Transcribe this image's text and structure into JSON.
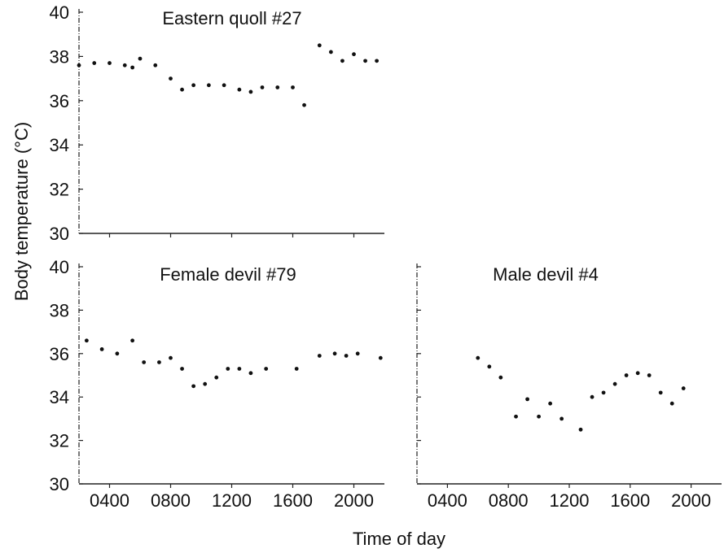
{
  "figure": {
    "ylabel": "Body temperature (°C)",
    "xlabel": "Time of day"
  },
  "chart_data": [
    {
      "type": "scatter",
      "title": "Eastern quoll #27",
      "xlabel": "",
      "ylabel": "Body temperature (°C)",
      "xlim": [
        200,
        2200
      ],
      "ylim": [
        30,
        40
      ],
      "yticks": [
        30,
        32,
        34,
        36,
        38,
        40
      ],
      "xticks": [
        400,
        800,
        1200,
        1600,
        2000
      ],
      "series": [
        {
          "x": [
            200,
            300,
            400,
            500,
            550,
            600,
            700,
            800,
            875,
            950,
            1050,
            1150,
            1250,
            1325,
            1400,
            1500,
            1600,
            1675,
            1775,
            1850,
            1925,
            2000,
            2075,
            2150
          ],
          "y": [
            37.6,
            37.7,
            37.7,
            37.6,
            37.5,
            37.9,
            37.6,
            37.0,
            36.5,
            36.7,
            36.7,
            36.7,
            36.5,
            36.4,
            36.6,
            36.6,
            36.6,
            35.8,
            38.5,
            38.2,
            37.8,
            38.1,
            37.8,
            37.8
          ]
        }
      ]
    },
    {
      "type": "scatter",
      "title": "Female devil #79",
      "xlabel": "Time of day",
      "ylabel": "Body temperature (°C)",
      "xlim": [
        200,
        2200
      ],
      "ylim": [
        30,
        40
      ],
      "yticks": [
        30,
        32,
        34,
        36,
        38,
        40
      ],
      "xticks": [
        400,
        800,
        1200,
        1600,
        2000
      ],
      "xtick_labels": [
        "0400",
        "0800",
        "1200",
        "1600",
        "2000"
      ],
      "series": [
        {
          "x": [
            250,
            350,
            450,
            550,
            625,
            725,
            800,
            875,
            950,
            1025,
            1100,
            1175,
            1250,
            1325,
            1425,
            1625,
            1775,
            1875,
            1950,
            2025,
            2175
          ],
          "y": [
            36.6,
            36.2,
            36.0,
            36.6,
            35.6,
            35.6,
            35.8,
            35.3,
            34.5,
            34.6,
            34.9,
            35.3,
            35.3,
            35.1,
            35.3,
            35.3,
            35.9,
            36.0,
            35.9,
            36.0,
            35.8
          ]
        }
      ]
    },
    {
      "type": "scatter",
      "title": "Male devil #4",
      "xlabel": "Time of day",
      "ylabel": "",
      "xlim": [
        200,
        2200
      ],
      "ylim": [
        30,
        40
      ],
      "yticks": [
        30,
        32,
        34,
        36,
        38,
        40
      ],
      "xticks": [
        400,
        800,
        1200,
        1600,
        2000
      ],
      "xtick_labels": [
        "0400",
        "0800",
        "1200",
        "1600",
        "2000"
      ],
      "series": [
        {
          "x": [
            600,
            675,
            750,
            850,
            925,
            1000,
            1075,
            1150,
            1275,
            1350,
            1425,
            1500,
            1575,
            1650,
            1725,
            1800,
            1875,
            1950
          ],
          "y": [
            35.8,
            35.4,
            34.9,
            33.1,
            33.9,
            33.1,
            33.7,
            33.0,
            32.5,
            34.0,
            34.2,
            34.6,
            35.0,
            35.1,
            35.0,
            34.2,
            33.7,
            34.4
          ]
        }
      ]
    }
  ]
}
